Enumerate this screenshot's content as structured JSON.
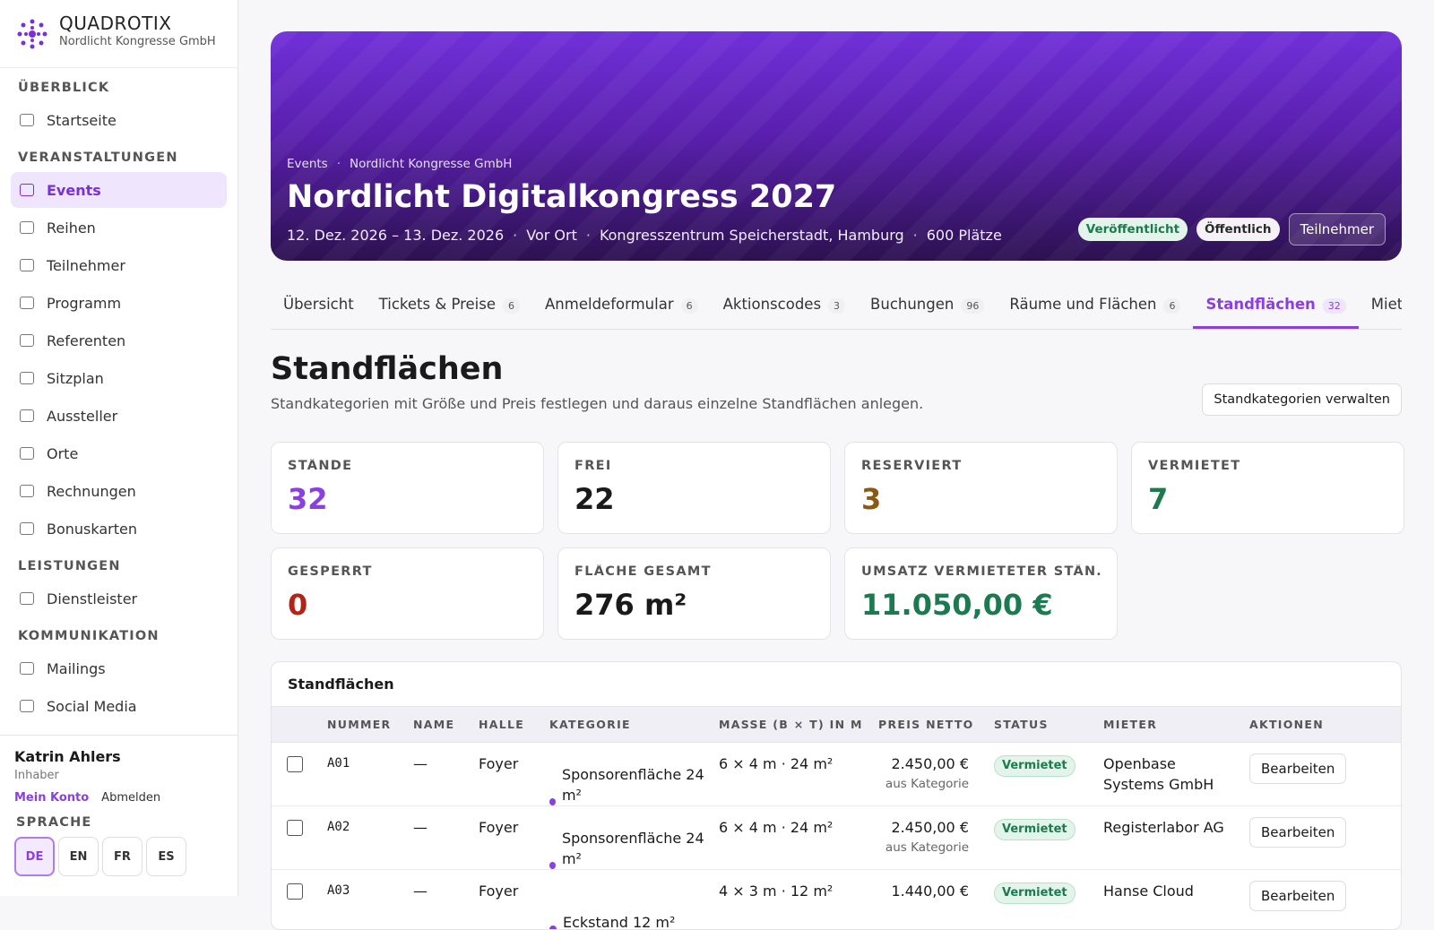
{
  "sidebar": {
    "brand": {
      "name": "QUADROTIX",
      "org": "Nordlicht Kongresse GmbH"
    },
    "sections": [
      {
        "title": "ÜBERBLICK",
        "items": [
          "Startseite"
        ]
      },
      {
        "title": "VERANSTALTUNGEN",
        "items": [
          "Events",
          "Reihen",
          "Teilnehmer",
          "Programm",
          "Referenten",
          "Sitzplan",
          "Aussteller",
          "Orte",
          "Rechnungen",
          "Bonuskarten"
        ]
      },
      {
        "title": "LEISTUNGEN",
        "items": [
          "Dienstleister"
        ]
      },
      {
        "title": "KOMMUNIKATION",
        "items": [
          "Mailings",
          "Social Media"
        ]
      }
    ],
    "active": "Events",
    "user": {
      "name": "Katrin Ahlers",
      "role": "Inhaber",
      "links": [
        "Mein Konto",
        "Abmelden"
      ]
    },
    "language": {
      "title": "SPRACHE",
      "options": [
        "DE",
        "EN",
        "FR",
        "ES"
      ],
      "active": "DE"
    }
  },
  "hero": {
    "breadcrumb": [
      "Events",
      "Nordlicht Kongresse GmbH"
    ],
    "title": "Nordlicht Digitalkongress 2027",
    "meta": [
      "12. Dez. 2026 – 13. Dez. 2026",
      "Vor Ort",
      "Kongresszentrum Speicherstadt, Hamburg",
      "600 Plätze"
    ],
    "badges": [
      "Veröffentlicht",
      "Öffentlich"
    ],
    "button": "Teilnehmer"
  },
  "tabs": [
    {
      "label": "Übersicht"
    },
    {
      "label": "Tickets & Preise",
      "count": 6
    },
    {
      "label": "Anmeldeformular",
      "count": 6
    },
    {
      "label": "Aktionscodes",
      "count": 3
    },
    {
      "label": "Buchungen",
      "count": 96
    },
    {
      "label": "Räume und Flächen",
      "count": 6
    },
    {
      "label": "Standflächen",
      "count": 32
    },
    {
      "label": "Mietge"
    }
  ],
  "active_tab": "Standflächen",
  "page": {
    "title": "Standflächen",
    "subtitle": "Standkategorien mit Größe und Preis festlegen und daraus einzelne Standflächen anlegen.",
    "button": "Standkategorien verwalten"
  },
  "stats": [
    {
      "label": "STÄNDE",
      "value": "32",
      "color": "#8b3fe0"
    },
    {
      "label": "FREI",
      "value": "22",
      "color": "#1a1a1a"
    },
    {
      "label": "RESERVIERT",
      "value": "3",
      "color": "#8a5a14"
    },
    {
      "label": "VERMIETET",
      "value": "7",
      "color": "#1b7a4f"
    },
    {
      "label": "GESPERRT",
      "value": "0",
      "color": "#b42318"
    },
    {
      "label": "FLÄCHE GESAMT",
      "value": "276 m²",
      "color": "#1a1a1a"
    },
    {
      "label": "UMSATZ VERMIETETER STÄN…",
      "value": "11.050,00 €",
      "color": "#1b7a4f"
    }
  ],
  "table": {
    "title": "Standflächen",
    "columns": [
      "NUMMER",
      "NAME",
      "HALLE",
      "KATEGORIE",
      "MASSE (B × T) IN M",
      "PREIS NETTO",
      "STATUS",
      "MIETER",
      "AKTIONEN"
    ],
    "rows": [
      {
        "number": "A01",
        "name": "—",
        "hall": "Foyer",
        "category": "Sponsorenfläche 24 m²",
        "size": "6 × 4 m · 24 m²",
        "price": "2.450,00 €",
        "price_note": "aus Kategorie",
        "status": "Vermietet",
        "tenant": "Openbase Systems GmbH",
        "action": "Bearbeiten"
      },
      {
        "number": "A02",
        "name": "—",
        "hall": "Foyer",
        "category": "Sponsorenfläche 24 m²",
        "size": "6 × 4 m · 24 m²",
        "price": "2.450,00 €",
        "price_note": "aus Kategorie",
        "status": "Vermietet",
        "tenant": "Registerlabor AG",
        "action": "Bearbeiten"
      },
      {
        "number": "A03",
        "name": "—",
        "hall": "Foyer",
        "category": "Eckstand 12 m²",
        "size": "4 × 3 m · 12 m²",
        "price": "1.440,00 €",
        "status": "Vermietet",
        "tenant": "Hanse Cloud",
        "action": "Bearbeiten"
      }
    ]
  }
}
